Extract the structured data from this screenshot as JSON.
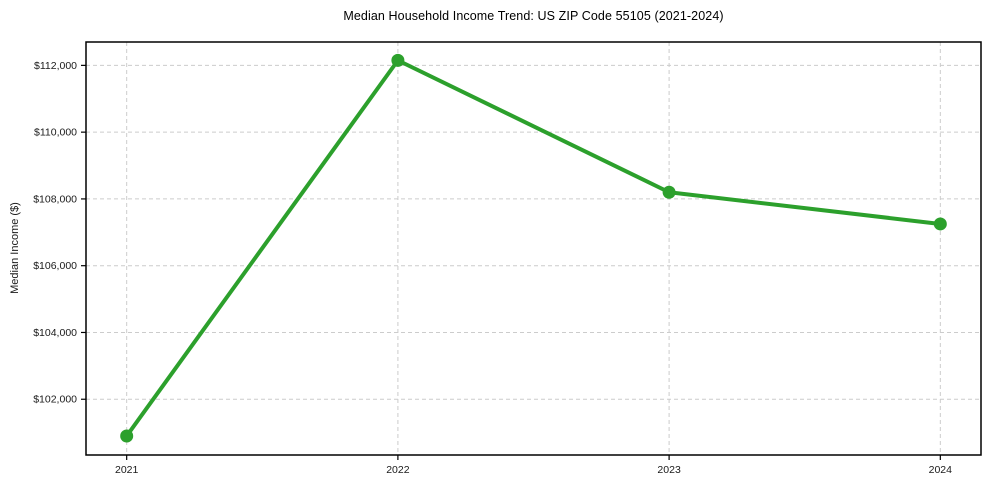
{
  "chart_data": {
    "type": "line",
    "title": "Median Household Income Trend: US ZIP Code 55105 (2021-2024)",
    "xlabel": "",
    "ylabel": "Median Income ($)",
    "x": [
      2021,
      2022,
      2023,
      2024
    ],
    "categories": [
      "2021",
      "2022",
      "2023",
      "2024"
    ],
    "values": [
      100900,
      112150,
      108200,
      107250
    ],
    "yticks": [
      102000,
      104000,
      106000,
      108000,
      110000,
      112000
    ],
    "ytick_labels": [
      "$102,000",
      "$104,000",
      "$106,000",
      "$108,000",
      "$110,000",
      "$112,000"
    ],
    "ylim": [
      100330,
      112700
    ],
    "xlim": [
      2020.85,
      2024.15
    ],
    "grid": true,
    "grid_style": "dashed",
    "legend": "none",
    "colors": {
      "line": "#2ca02c",
      "marker": "#2ca02c",
      "grid": "#cccccc",
      "spine": "#000000",
      "tick_text": "#1a1a1a",
      "title_text": "#000000",
      "background": "#ffffff"
    }
  }
}
